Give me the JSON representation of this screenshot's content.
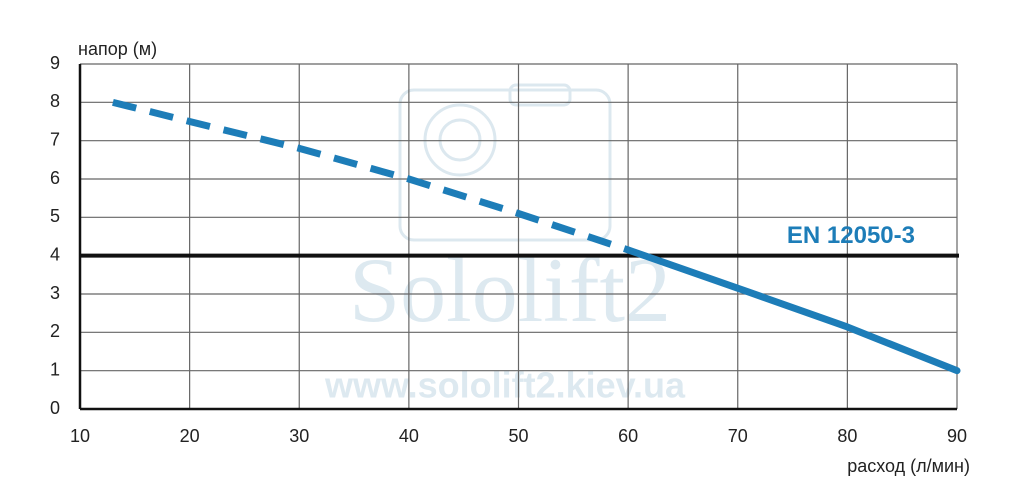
{
  "chart_data": {
    "type": "line",
    "y_label": "напор (м)",
    "x_label": "расход (л/мин)",
    "x": [
      13,
      20,
      30,
      40,
      50,
      60,
      71,
      80,
      90
    ],
    "series": [
      {
        "color": "#1d7db8",
        "dashed": true,
        "values": [
          8.0,
          7.5,
          6.8,
          6.0,
          5.1,
          4.15,
          null,
          null,
          null
        ]
      },
      {
        "color": "#1d7db8",
        "dashed": false,
        "values": [
          null,
          null,
          null,
          null,
          null,
          4.15,
          3.05,
          2.14,
          1.0
        ]
      }
    ],
    "reference_line": {
      "value": 4,
      "label": "EN 12050-3",
      "color": "#111111",
      "label_color": "#1d7db8"
    },
    "xlim": [
      10,
      90
    ],
    "xticks": [
      10,
      20,
      30,
      40,
      50,
      60,
      70,
      80,
      90
    ],
    "ylim": [
      0,
      9
    ],
    "yticks": [
      0,
      1,
      2,
      3,
      4,
      5,
      6,
      7,
      8,
      9
    ],
    "grid": true,
    "watermark": {
      "title": "Sololift2",
      "url": "www.sololift2.kiev.ua"
    }
  }
}
